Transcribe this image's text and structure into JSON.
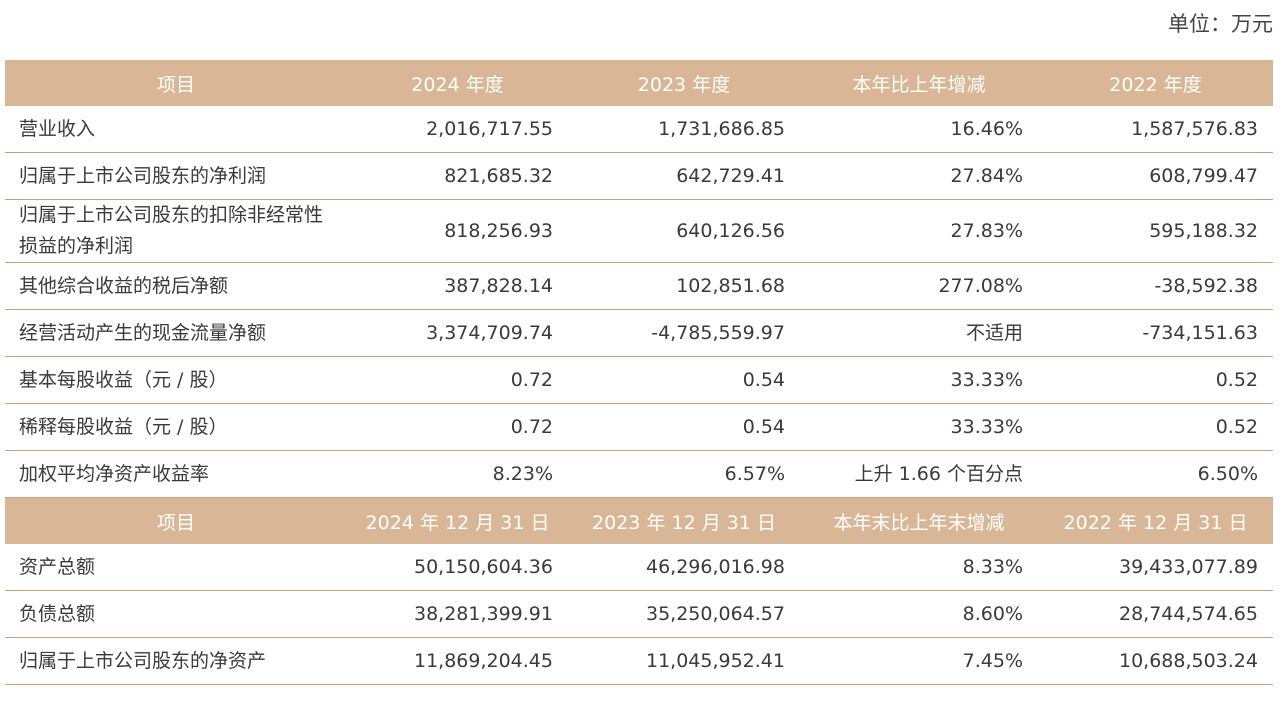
{
  "unit": "单位：万元",
  "table": {
    "sections": [
      {
        "header": [
          "项目",
          "2024 年度",
          "2023 年度",
          "本年比上年增减",
          "2022 年度"
        ],
        "rows": [
          [
            "营业收入",
            "2,016,717.55",
            "1,731,686.85",
            "16.46%",
            "1,587,576.83"
          ],
          [
            "归属于上市公司股东的净利润",
            "821,685.32",
            "642,729.41",
            "27.84%",
            "608,799.47"
          ],
          [
            "归属于上市公司股东的扣除非经常性损益的净利润",
            "818,256.93",
            "640,126.56",
            "27.83%",
            "595,188.32"
          ],
          [
            "其他综合收益的税后净额",
            "387,828.14",
            "102,851.68",
            "277.08%",
            "-38,592.38"
          ],
          [
            "经营活动产生的现金流量净额",
            "3,374,709.74",
            "-4,785,559.97",
            "不适用",
            "-734,151.63"
          ],
          [
            "基本每股收益（元 / 股）",
            "0.72",
            "0.54",
            "33.33%",
            "0.52"
          ],
          [
            "稀释每股收益（元 / 股）",
            "0.72",
            "0.54",
            "33.33%",
            "0.52"
          ],
          [
            "加权平均净资产收益率",
            "8.23%",
            "6.57%",
            "上升 1.66 个百分点",
            "6.50%"
          ]
        ]
      },
      {
        "header": [
          "项目",
          "2024 年 12 月 31 日",
          "2023 年 12 月 31 日",
          "本年末比上年末增减",
          "2022 年 12 月 31 日"
        ],
        "rows": [
          [
            "资产总额",
            "50,150,604.36",
            "46,296,016.98",
            "8.33%",
            "39,433,077.89"
          ],
          [
            "负债总额",
            "38,281,399.91",
            "35,250,064.57",
            "8.60%",
            "28,744,574.65"
          ],
          [
            "归属于上市公司股东的净资产",
            "11,869,204.45",
            "11,045,952.41",
            "7.45%",
            "10,688,503.24"
          ]
        ]
      }
    ]
  }
}
